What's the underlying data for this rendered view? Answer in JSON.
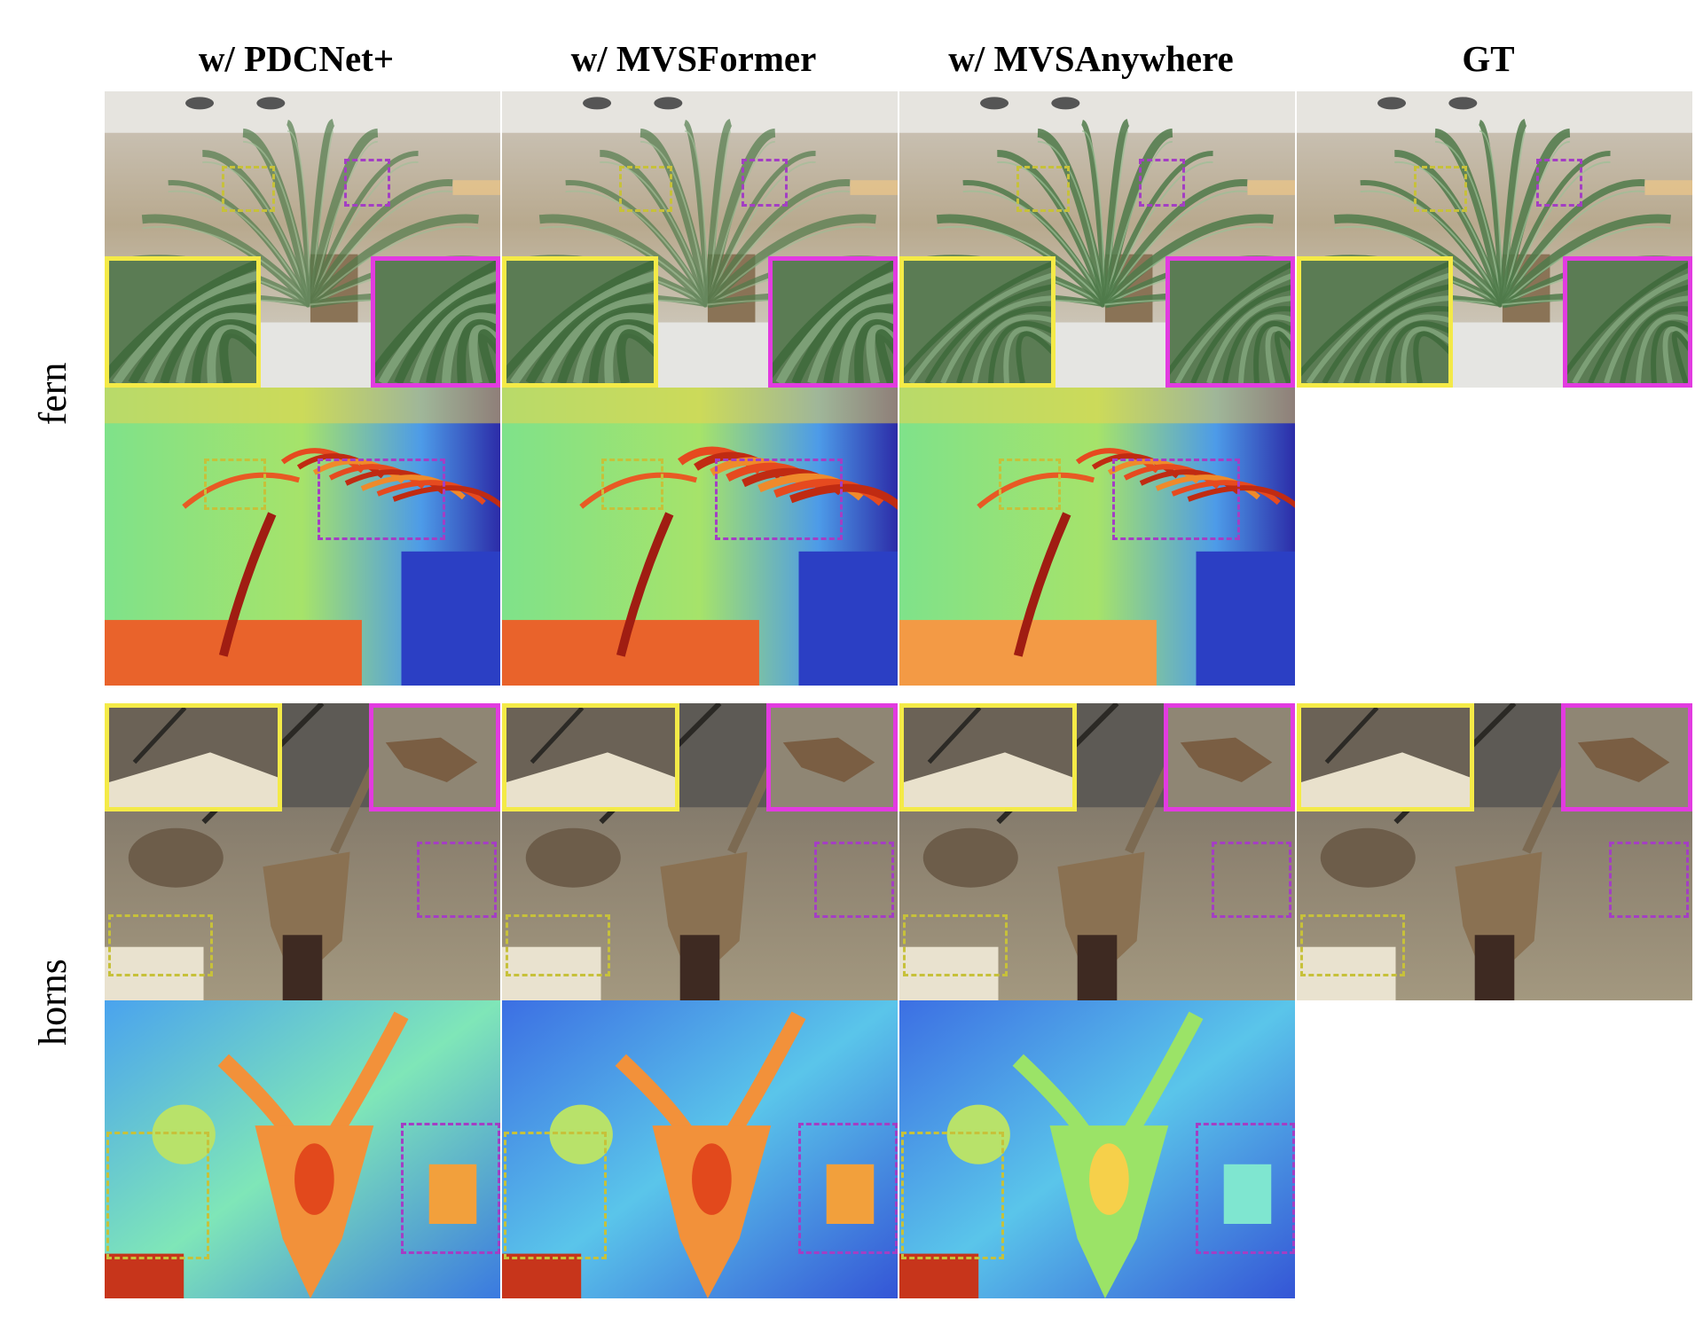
{
  "columns": [
    {
      "label": "w/ PDCNet+"
    },
    {
      "label": "w/ MVSFormer"
    },
    {
      "label": "w/ MVSAnywhere"
    },
    {
      "label": "GT"
    }
  ],
  "rows": [
    {
      "label": "fern"
    },
    {
      "label": "horns"
    }
  ],
  "colors": {
    "inset_yellow": "#f4ea47",
    "inset_magenta": "#e23be0"
  }
}
